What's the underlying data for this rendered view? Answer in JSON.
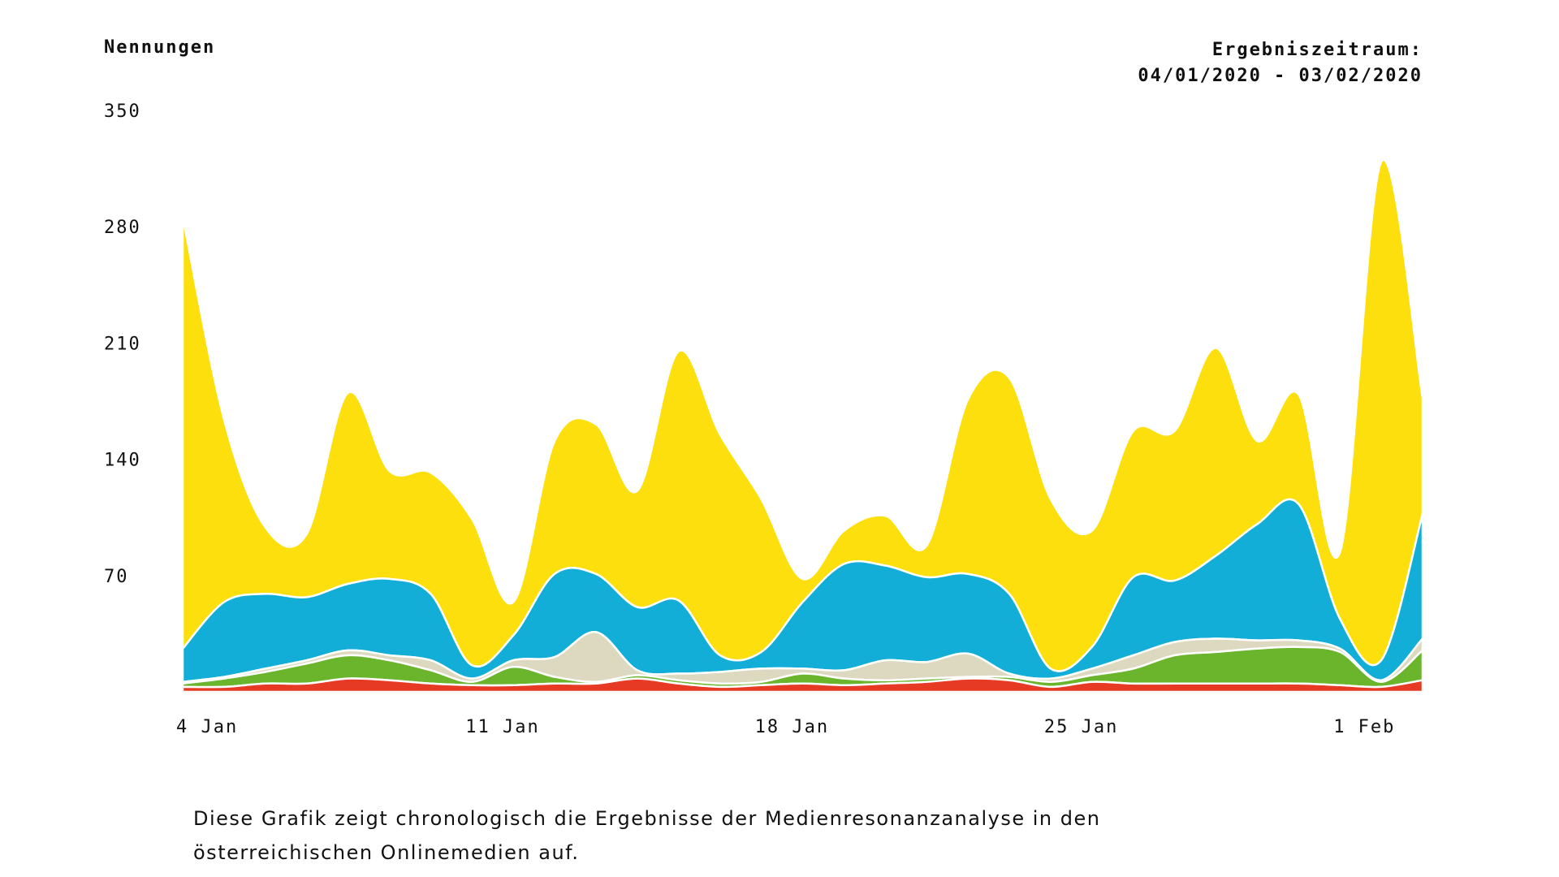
{
  "header": {
    "ylabel": "Nennungen",
    "period_label": "Ergebniszeitraum:",
    "period_range": "04/01/2020 - 03/02/2020"
  },
  "caption": {
    "line1": "Diese Grafik zeigt chronologisch die Ergebnisse der Medienresonanzanalyse in den",
    "line2": "österreichischen Onlinemedien auf."
  },
  "chart_data": {
    "type": "area",
    "stacked": true,
    "title": "",
    "xlabel": "",
    "ylabel": "Nennungen",
    "ylim": [
      0,
      350
    ],
    "yticks": [
      70,
      140,
      210,
      280,
      350
    ],
    "xticks": [
      {
        "x": "2020-01-04",
        "label": "4 Jan"
      },
      {
        "x": "2020-01-11",
        "label": "11 Jan"
      },
      {
        "x": "2020-01-18",
        "label": "18 Jan"
      },
      {
        "x": "2020-01-25",
        "label": "25 Jan"
      },
      {
        "x": "2020-02-01",
        "label": "1 Feb"
      }
    ],
    "x": [
      "2020-01-04",
      "2020-01-05",
      "2020-01-06",
      "2020-01-07",
      "2020-01-08",
      "2020-01-09",
      "2020-01-10",
      "2020-01-11",
      "2020-01-12",
      "2020-01-13",
      "2020-01-14",
      "2020-01-15",
      "2020-01-16",
      "2020-01-17",
      "2020-01-18",
      "2020-01-19",
      "2020-01-20",
      "2020-01-21",
      "2020-01-22",
      "2020-01-23",
      "2020-01-24",
      "2020-01-25",
      "2020-01-26",
      "2020-01-27",
      "2020-01-28",
      "2020-01-29",
      "2020-01-30",
      "2020-01-31",
      "2020-02-01",
      "2020-02-02",
      "2020-02-03"
    ],
    "grid": false,
    "legend": "none",
    "series": [
      {
        "color": "#e63a24",
        "values": [
          3,
          3,
          5,
          5,
          8,
          7,
          5,
          4,
          4,
          5,
          5,
          8,
          5,
          3,
          4,
          5,
          4,
          5,
          6,
          8,
          7,
          3,
          6,
          5,
          5,
          5,
          5,
          5,
          4,
          3,
          7
        ]
      },
      {
        "color": "#6bb52d",
        "values": [
          2,
          5,
          7,
          12,
          14,
          12,
          8,
          2,
          11,
          4,
          1,
          2,
          2,
          2,
          2,
          6,
          4,
          2,
          2,
          1,
          2,
          3,
          4,
          9,
          17,
          19,
          21,
          22,
          20,
          3,
          18
        ]
      },
      {
        "color": "#ddd9c0",
        "values": [
          1,
          1,
          2,
          2,
          3,
          3,
          6,
          2,
          4,
          12,
          30,
          3,
          4,
          7,
          8,
          3,
          5,
          12,
          10,
          14,
          2,
          2,
          4,
          8,
          8,
          8,
          5,
          4,
          2,
          1,
          7
        ]
      },
      {
        "color": "#12aed8",
        "values": [
          20,
          45,
          45,
          38,
          40,
          46,
          40,
          8,
          15,
          50,
          35,
          38,
          44,
          10,
          10,
          40,
          64,
          57,
          51,
          48,
          48,
          6,
          13,
          47,
          37,
          50,
          70,
          82,
          18,
          12,
          75
        ]
      },
      {
        "color": "#fedf0e",
        "values": [
          260,
          110,
          40,
          38,
          115,
          65,
          73,
          88,
          20,
          80,
          90,
          70,
          150,
          133,
          92,
          14,
          20,
          30,
          19,
          105,
          130,
          102,
          70,
          88,
          90,
          125,
          50,
          66,
          40,
          300,
          70
        ]
      }
    ]
  }
}
